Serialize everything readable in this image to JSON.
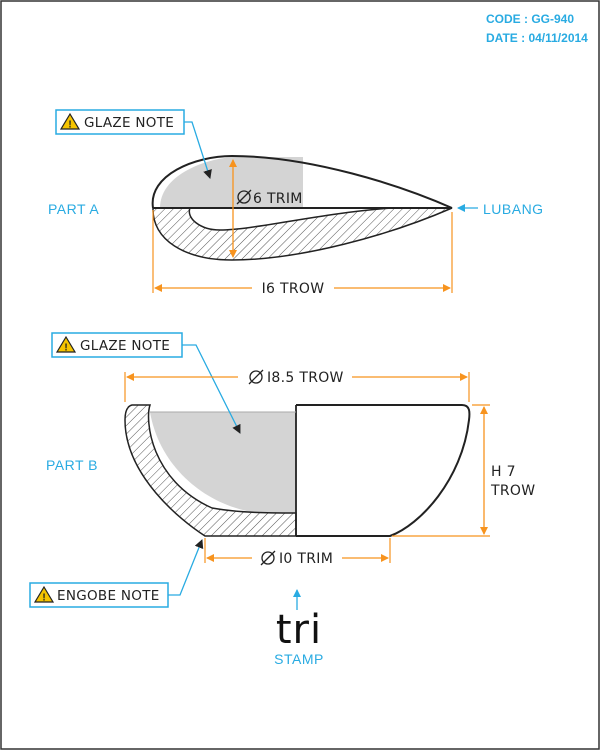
{
  "title_block": {
    "code": "CODE : GG-940",
    "date": "DATE : 04/11/2014"
  },
  "part_a": {
    "label": "PART A",
    "glaze_note": "GLAZE NOTE",
    "diameter_dim": "6 TRIM",
    "length_dim": "I6 TROW",
    "spout_label": "LUBANG"
  },
  "part_b": {
    "label": "PART B",
    "glaze_note": "GLAZE NOTE",
    "rim_dim": "I8.5 TROW",
    "height_dim_line1": "H 7",
    "height_dim_line2": "TROW",
    "foot_dim": "I0 TRIM",
    "engobe_note": "ENGOBE NOTE"
  },
  "stamp": {
    "mark": "tri",
    "label": "STAMP"
  },
  "colors": {
    "accent": "#29abe2",
    "dimension": "#f7931e",
    "glaze_fill": "#d4d4d4",
    "outline": "#222222",
    "warning": "#f5c400"
  }
}
